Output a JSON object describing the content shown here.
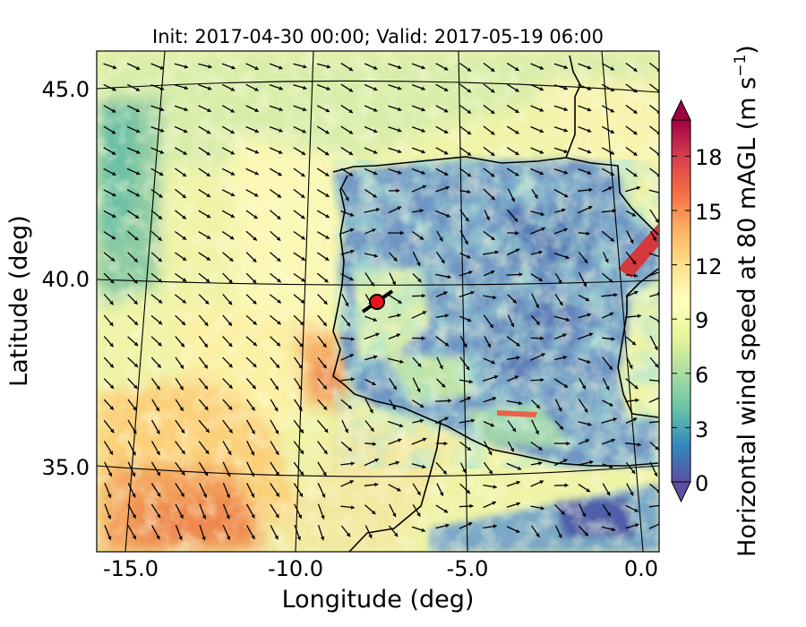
{
  "chart_data": {
    "type": "heatmap",
    "title": "Init: 2017-04-30 00:00; Valid: 2017-05-19 06:00",
    "xlabel": "Longitude (deg)",
    "ylabel": "Latitude (deg)",
    "xlim": [
      -16.0,
      0.3
    ],
    "ylim": [
      32.5,
      46.0
    ],
    "x_ticks": [
      "-15.0",
      "-10.0",
      "-5.0",
      "0.0"
    ],
    "y_ticks": [
      "35.0",
      "40.0",
      "45.0"
    ],
    "colorbar": {
      "label": "Horizontal wind speed at 80 mAGL",
      "unit_base": "(m s",
      "unit_exp": "−1",
      "unit_close": ")",
      "range": [
        0,
        20
      ],
      "ticks": [
        "0",
        "3",
        "6",
        "9",
        "12",
        "15",
        "18"
      ],
      "extend": "both",
      "colormap": "Spectral_r"
    },
    "marker": {
      "lon": -7.9,
      "lat": 39.5,
      "color": "#e8141b"
    },
    "colors": {
      "ocean_sw": "#f2a259",
      "ocean_n": "#f6f0a0",
      "land_low": "#4f73b2",
      "land_mid": "#9fd4a4",
      "jet": "#d5383d"
    }
  }
}
